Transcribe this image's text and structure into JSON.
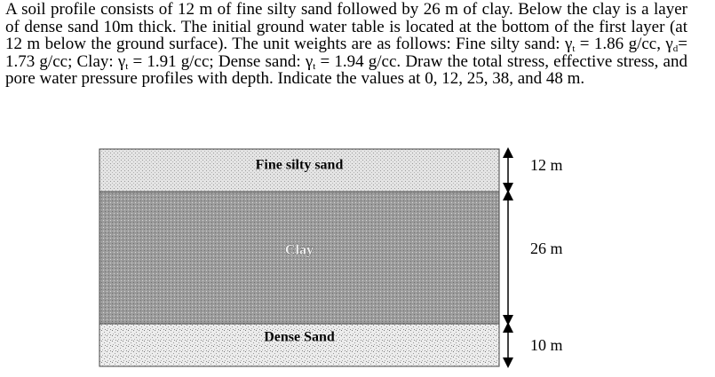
{
  "problem": {
    "runs": [
      {
        "text": "A soil profile consists of 12 m of fine silty sand followed by 26 m of clay. Below the clay is a layer of dense sand 10m thick. The initial ground water table is located at the bottom of the first layer (at 12 m below the ground surface). The unit weights are as follows: Fine silty sand: "
      },
      {
        "text": "γ"
      },
      {
        "sub": "t"
      },
      {
        "text": " = 1.86 g/cc, "
      },
      {
        "text": "γ"
      },
      {
        "sub": "d"
      },
      {
        "text": "= 1.73 g/cc; Clay: "
      },
      {
        "text": "γ"
      },
      {
        "sub": "t"
      },
      {
        "text": " = 1.91 g/cc; Dense sand: "
      },
      {
        "text": "γ"
      },
      {
        "sub": "t"
      },
      {
        "text": " = 1.94 g/cc. Draw the total stress, effective stress, and pore water pressure profiles with depth. Indicate the values at 0, 12, 25, 38, and 48 m."
      }
    ]
  },
  "profile": {
    "layers": [
      {
        "label": "Fine silty sand",
        "thickness": "12 m"
      },
      {
        "label": "Clay",
        "thickness": "26 m"
      },
      {
        "label": "Dense Sand",
        "thickness": "10 m"
      }
    ]
  }
}
